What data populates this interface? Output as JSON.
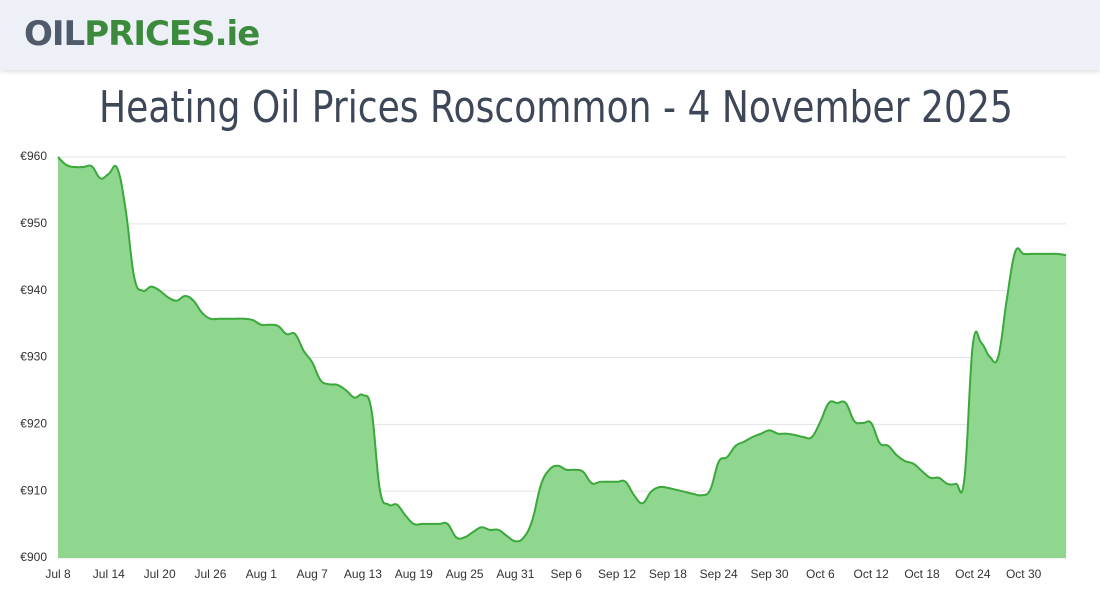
{
  "header": {
    "logo_part1": "OIL",
    "logo_part2": "PRICES.ie"
  },
  "chart_data": {
    "type": "area",
    "title": "Heating Oil Prices Roscommon - 4 November 2025",
    "categories": [
      "Jul 8",
      null,
      null,
      null,
      null,
      null,
      "Jul 14",
      null,
      null,
      null,
      null,
      null,
      "Jul 20",
      null,
      null,
      null,
      null,
      null,
      "Jul 26",
      null,
      null,
      null,
      null,
      null,
      "Aug 1",
      null,
      null,
      null,
      null,
      null,
      "Aug 7",
      null,
      null,
      null,
      null,
      null,
      "Aug 13",
      null,
      null,
      null,
      null,
      null,
      "Aug 19",
      null,
      null,
      null,
      null,
      null,
      "Aug 25",
      null,
      null,
      null,
      null,
      null,
      "Aug 31",
      null,
      null,
      null,
      null,
      null,
      "Sep 6",
      null,
      null,
      null,
      null,
      null,
      "Sep 12",
      null,
      null,
      null,
      null,
      null,
      "Sep 18",
      null,
      null,
      null,
      null,
      null,
      "Sep 24",
      null,
      null,
      null,
      null,
      null,
      "Sep 30",
      null,
      null,
      null,
      null,
      null,
      "Oct 6",
      null,
      null,
      null,
      null,
      null,
      "Oct 12",
      null,
      null,
      null,
      null,
      null,
      "Oct 18",
      null,
      null,
      null,
      null,
      null,
      "Oct 24",
      null,
      null,
      null,
      null,
      null,
      "Oct 30",
      null,
      null,
      null,
      null,
      null
    ],
    "values": [
      960,
      958.8,
      958.5,
      958.5,
      958.6,
      956.8,
      957.5,
      958.3,
      952,
      942,
      940,
      940.6,
      940,
      939,
      938.5,
      939.2,
      938.5,
      936.7,
      935.8,
      935.8,
      935.8,
      935.8,
      935.8,
      935.6,
      934.9,
      934.9,
      934.7,
      933.5,
      933.5,
      931,
      929.3,
      926.6,
      926,
      925.9,
      925.1,
      924,
      924.4,
      922.2,
      910.2,
      908,
      908,
      906.4,
      905.1,
      905.1,
      905.1,
      905.1,
      905.1,
      903.1,
      903.1,
      903.9,
      904.6,
      904.2,
      904.2,
      903.3,
      902.5,
      903.1,
      905.7,
      910.9,
      913.2,
      913.8,
      913.2,
      913.2,
      912.9,
      911.2,
      911.4,
      911.4,
      911.4,
      911.4,
      909.4,
      908.2,
      909.9,
      910.6,
      910.5,
      910.2,
      909.9,
      909.6,
      909.4,
      910.2,
      914.4,
      915.1,
      916.8,
      917.4,
      918.1,
      918.6,
      919.1,
      918.6,
      918.6,
      918.4,
      918.1,
      918.1,
      920.4,
      923.2,
      923.2,
      923.2,
      920.5,
      920.2,
      920.2,
      917.2,
      916.8,
      915.4,
      914.5,
      914.1,
      913,
      912,
      912,
      911.1,
      911.1,
      911.8,
      931.9,
      932.2,
      930.1,
      930.1,
      938.6,
      945.8,
      945.5,
      945.5,
      945.5,
      945.5,
      945.5,
      945.3
    ],
    "color": "#3aa83a",
    "fill": "#8fd68f",
    "ylim": [
      900,
      960
    ],
    "yticks": [
      {
        "value": 900,
        "label": "€900"
      },
      {
        "value": 910,
        "label": "€910"
      },
      {
        "value": 920,
        "label": "€920"
      },
      {
        "value": 930,
        "label": "€930"
      },
      {
        "value": 940,
        "label": "€940"
      },
      {
        "value": 950,
        "label": "€950"
      },
      {
        "value": 960,
        "label": "€960"
      }
    ],
    "grid": true
  }
}
